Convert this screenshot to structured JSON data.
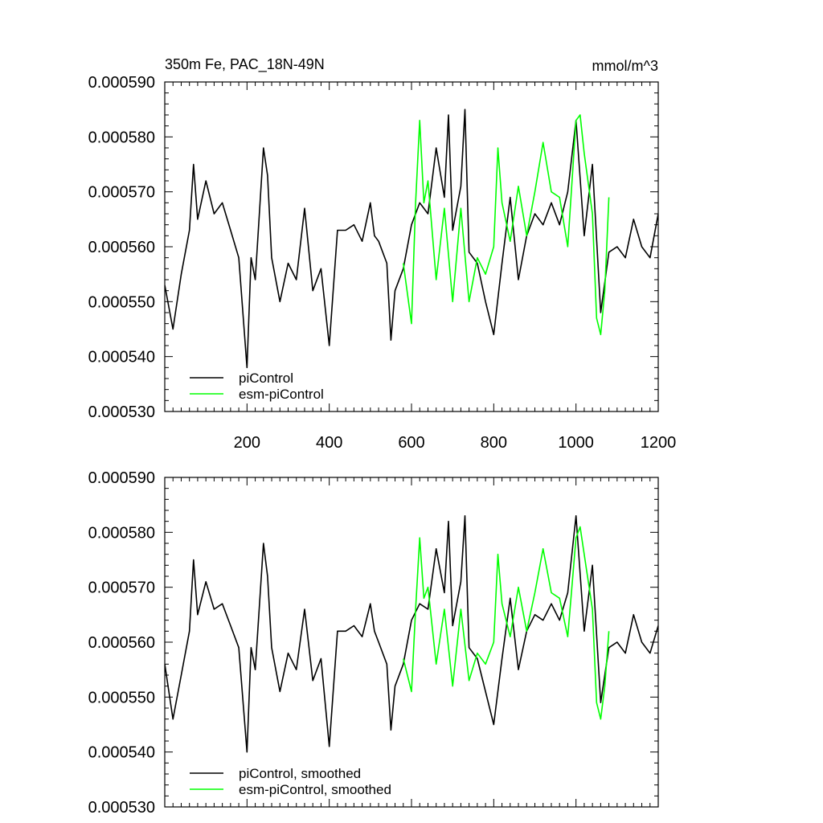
{
  "chart_data": [
    {
      "type": "line",
      "title": "350m Fe, PAC_18N-49N",
      "units_label": "mmol/m^3",
      "xlim": [
        0,
        1200
      ],
      "ylim": [
        0.00053,
        0.00059
      ],
      "x_ticks": [
        200,
        400,
        600,
        800,
        1000,
        1200
      ],
      "x_tick_labels": [
        "200",
        "400",
        "600",
        "800",
        "1000",
        "1200"
      ],
      "y_ticks": [
        0.00053,
        0.00054,
        0.00055,
        0.00056,
        0.00057,
        0.00058,
        0.00059
      ],
      "y_tick_labels": [
        "0.000530",
        "0.000540",
        "0.000550",
        "0.000560",
        "0.000570",
        "0.000580",
        "0.000590"
      ],
      "grid": false,
      "legend": "bottom-left",
      "series": [
        {
          "name": "piControl",
          "color": "#000000",
          "x": [
            0,
            20,
            40,
            60,
            70,
            80,
            100,
            120,
            140,
            160,
            180,
            200,
            210,
            220,
            240,
            250,
            260,
            280,
            300,
            320,
            340,
            360,
            380,
            400,
            420,
            440,
            460,
            480,
            500,
            510,
            520,
            540,
            550,
            560,
            580,
            600,
            620,
            640,
            660,
            680,
            690,
            700,
            720,
            730,
            740,
            760,
            780,
            800,
            820,
            840,
            860,
            880,
            900,
            920,
            940,
            960,
            980,
            1000,
            1020,
            1040,
            1060,
            1080,
            1100,
            1120,
            1140,
            1160,
            1180,
            1200
          ],
          "y": [
            0.000553,
            0.000545,
            0.000555,
            0.000563,
            0.000575,
            0.000565,
            0.000572,
            0.000566,
            0.000568,
            0.000563,
            0.000558,
            0.000538,
            0.000558,
            0.000554,
            0.000578,
            0.000573,
            0.000558,
            0.00055,
            0.000557,
            0.000554,
            0.000567,
            0.000552,
            0.000556,
            0.000542,
            0.000563,
            0.000563,
            0.000564,
            0.000561,
            0.000568,
            0.000562,
            0.000561,
            0.000557,
            0.000543,
            0.000552,
            0.000556,
            0.000564,
            0.000568,
            0.000566,
            0.000578,
            0.000569,
            0.000584,
            0.000563,
            0.000571,
            0.000585,
            0.000559,
            0.000557,
            0.00055,
            0.000544,
            0.000557,
            0.000569,
            0.000554,
            0.000562,
            0.000566,
            0.000564,
            0.000568,
            0.000564,
            0.00057,
            0.000583,
            0.000562,
            0.000575,
            0.000548,
            0.000559,
            0.00056,
            0.000558,
            0.000565,
            0.00056,
            0.000558,
            0.000566
          ]
        },
        {
          "name": "esm-piControl",
          "color": "#00ff00",
          "x": [
            580,
            600,
            610,
            620,
            630,
            640,
            660,
            680,
            700,
            720,
            740,
            760,
            780,
            800,
            810,
            820,
            840,
            860,
            880,
            900,
            920,
            940,
            960,
            980,
            1000,
            1010,
            1020,
            1040,
            1050,
            1060,
            1070,
            1080
          ],
          "y": [
            0.000557,
            0.000546,
            0.000568,
            0.000583,
            0.000568,
            0.000572,
            0.000554,
            0.000567,
            0.00055,
            0.000567,
            0.00055,
            0.000558,
            0.000555,
            0.00056,
            0.000578,
            0.000568,
            0.000561,
            0.000571,
            0.000562,
            0.00057,
            0.000579,
            0.00057,
            0.000569,
            0.00056,
            0.000583,
            0.000584,
            0.000577,
            0.000566,
            0.000547,
            0.000544,
            0.000552,
            0.000569
          ]
        }
      ]
    },
    {
      "type": "line",
      "xlim": [
        0,
        1200
      ],
      "ylim": [
        0.00053,
        0.00059
      ],
      "y_ticks": [
        0.00053,
        0.00054,
        0.00055,
        0.00056,
        0.00057,
        0.00058,
        0.00059
      ],
      "y_tick_labels": [
        "0.000530",
        "0.000540",
        "0.000550",
        "0.000560",
        "0.000570",
        "0.000580",
        "0.000590"
      ],
      "grid": false,
      "legend": "bottom-left",
      "series": [
        {
          "name": "piControl, smoothed",
          "color": "#000000",
          "x": [
            0,
            20,
            40,
            60,
            70,
            80,
            100,
            120,
            140,
            160,
            180,
            200,
            210,
            220,
            240,
            250,
            260,
            280,
            300,
            320,
            340,
            360,
            380,
            400,
            420,
            440,
            460,
            480,
            500,
            510,
            520,
            540,
            550,
            560,
            580,
            600,
            620,
            640,
            660,
            680,
            690,
            700,
            720,
            730,
            740,
            760,
            780,
            800,
            820,
            840,
            860,
            880,
            900,
            920,
            940,
            960,
            980,
            1000,
            1020,
            1040,
            1060,
            1080,
            1100,
            1120,
            1140,
            1160,
            1180,
            1200
          ],
          "y": [
            0.000556,
            0.000546,
            0.000554,
            0.000562,
            0.000575,
            0.000565,
            0.000571,
            0.000566,
            0.000567,
            0.000563,
            0.000559,
            0.00054,
            0.000559,
            0.000555,
            0.000578,
            0.000572,
            0.000559,
            0.000551,
            0.000558,
            0.000555,
            0.000566,
            0.000553,
            0.000557,
            0.000541,
            0.000562,
            0.000562,
            0.000563,
            0.000561,
            0.000567,
            0.000562,
            0.00056,
            0.000556,
            0.000544,
            0.000552,
            0.000556,
            0.000564,
            0.000567,
            0.000566,
            0.000577,
            0.000569,
            0.000582,
            0.000563,
            0.000571,
            0.000583,
            0.000559,
            0.000557,
            0.000551,
            0.000545,
            0.000557,
            0.000568,
            0.000555,
            0.000562,
            0.000565,
            0.000564,
            0.000567,
            0.000564,
            0.000569,
            0.000583,
            0.000562,
            0.000574,
            0.000549,
            0.000559,
            0.00056,
            0.000558,
            0.000565,
            0.00056,
            0.000558,
            0.000563
          ]
        },
        {
          "name": "esm-piControl, smoothed",
          "color": "#00ff00",
          "x": [
            580,
            600,
            610,
            620,
            630,
            640,
            660,
            680,
            700,
            720,
            740,
            760,
            780,
            800,
            810,
            820,
            840,
            860,
            880,
            900,
            920,
            940,
            960,
            980,
            1000,
            1010,
            1020,
            1040,
            1050,
            1060,
            1070,
            1080
          ],
          "y": [
            0.000557,
            0.000551,
            0.000566,
            0.000579,
            0.000568,
            0.00057,
            0.000556,
            0.000566,
            0.000552,
            0.000566,
            0.000553,
            0.000558,
            0.000556,
            0.00056,
            0.000576,
            0.000567,
            0.000561,
            0.00057,
            0.000562,
            0.000569,
            0.000577,
            0.000569,
            0.000568,
            0.000561,
            0.000579,
            0.000581,
            0.000576,
            0.000566,
            0.000549,
            0.000546,
            0.000552,
            0.000562
          ]
        }
      ]
    }
  ]
}
